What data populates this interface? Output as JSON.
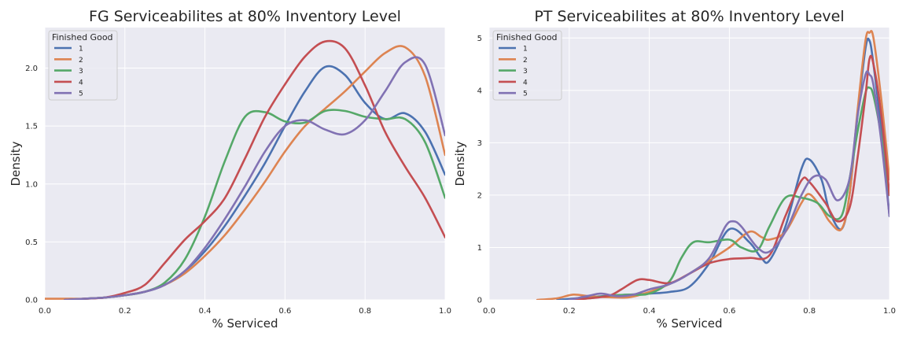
{
  "colors": {
    "background": "#eaeaf2",
    "grid": "#ffffff",
    "series": [
      "#4c72b0",
      "#dd8452",
      "#55a868",
      "#c44e52",
      "#8172b3"
    ]
  },
  "chart_data": [
    {
      "type": "line",
      "title": "FG Serviceabilites at 80% Inventory Level",
      "xlabel": "% Serviced",
      "ylabel": "Density",
      "xlim": [
        0,
        1
      ],
      "ylim": [
        0,
        2.35
      ],
      "xticks": [
        "0.0",
        "0.2",
        "0.4",
        "0.6",
        "0.8",
        "1.0"
      ],
      "yticks": [
        "0.0",
        "0.5",
        "1.0",
        "1.5",
        "2.0"
      ],
      "grid": true,
      "legend": {
        "title": "Finished Good",
        "position": "top-left"
      },
      "series": [
        {
          "name": "1",
          "x": [
            0.05,
            0.1,
            0.15,
            0.2,
            0.25,
            0.3,
            0.35,
            0.4,
            0.45,
            0.5,
            0.55,
            0.6,
            0.65,
            0.7,
            0.75,
            0.8,
            0.85,
            0.9,
            0.95,
            1.0
          ],
          "y": [
            0.0,
            0.01,
            0.02,
            0.04,
            0.07,
            0.13,
            0.25,
            0.42,
            0.64,
            0.9,
            1.18,
            1.5,
            1.8,
            2.01,
            1.94,
            1.7,
            1.56,
            1.61,
            1.45,
            1.08
          ]
        },
        {
          "name": "2",
          "x": [
            0.0,
            0.05,
            0.1,
            0.15,
            0.2,
            0.25,
            0.3,
            0.35,
            0.4,
            0.45,
            0.5,
            0.55,
            0.6,
            0.65,
            0.7,
            0.75,
            0.8,
            0.85,
            0.9,
            0.95,
            1.0
          ],
          "y": [
            0.01,
            0.01,
            0.01,
            0.02,
            0.04,
            0.07,
            0.13,
            0.23,
            0.38,
            0.56,
            0.78,
            1.02,
            1.28,
            1.5,
            1.65,
            1.8,
            1.97,
            2.13,
            2.18,
            1.93,
            1.25
          ]
        },
        {
          "name": "3",
          "x": [
            0.05,
            0.1,
            0.15,
            0.2,
            0.25,
            0.3,
            0.35,
            0.4,
            0.45,
            0.5,
            0.55,
            0.6,
            0.65,
            0.7,
            0.75,
            0.8,
            0.85,
            0.9,
            0.95,
            1.0
          ],
          "y": [
            0.0,
            0.01,
            0.02,
            0.04,
            0.07,
            0.15,
            0.35,
            0.72,
            1.2,
            1.58,
            1.62,
            1.54,
            1.53,
            1.63,
            1.63,
            1.58,
            1.56,
            1.56,
            1.36,
            0.88
          ]
        },
        {
          "name": "4",
          "x": [
            0.05,
            0.1,
            0.15,
            0.2,
            0.25,
            0.3,
            0.35,
            0.4,
            0.45,
            0.5,
            0.55,
            0.6,
            0.65,
            0.7,
            0.75,
            0.8,
            0.85,
            0.9,
            0.95,
            1.0
          ],
          "y": [
            0.0,
            0.01,
            0.02,
            0.06,
            0.13,
            0.32,
            0.52,
            0.68,
            0.88,
            1.22,
            1.58,
            1.86,
            2.1,
            2.23,
            2.17,
            1.85,
            1.45,
            1.15,
            0.88,
            0.54
          ]
        },
        {
          "name": "5",
          "x": [
            0.05,
            0.1,
            0.15,
            0.2,
            0.25,
            0.3,
            0.35,
            0.4,
            0.45,
            0.5,
            0.55,
            0.6,
            0.65,
            0.7,
            0.75,
            0.8,
            0.85,
            0.9,
            0.95,
            1.0
          ],
          "y": [
            0.0,
            0.01,
            0.02,
            0.04,
            0.07,
            0.13,
            0.25,
            0.45,
            0.7,
            0.98,
            1.28,
            1.5,
            1.55,
            1.47,
            1.43,
            1.55,
            1.8,
            2.05,
            2.03,
            1.42
          ]
        }
      ]
    },
    {
      "type": "line",
      "title": "PT Serviceabilites at 80% Inventory Level",
      "xlabel": "% Serviced",
      "ylabel": "Density",
      "xlim": [
        0,
        1
      ],
      "ylim": [
        0,
        5.2
      ],
      "xticks": [
        "0.0",
        "0.2",
        "0.4",
        "0.6",
        "0.8",
        "1.0"
      ],
      "yticks": [
        "0",
        "1",
        "2",
        "3",
        "4",
        "5"
      ],
      "grid": true,
      "legend": {
        "title": "Finished Good",
        "position": "top-left"
      },
      "series": [
        {
          "name": "1",
          "x": [
            0.17,
            0.25,
            0.3,
            0.35,
            0.4,
            0.45,
            0.5,
            0.55,
            0.6,
            0.65,
            0.68,
            0.7,
            0.74,
            0.78,
            0.8,
            0.83,
            0.85,
            0.88,
            0.9,
            0.92,
            0.94,
            0.95,
            0.96,
            0.98,
            1.0
          ],
          "y": [
            0.0,
            0.05,
            0.08,
            0.1,
            0.12,
            0.15,
            0.25,
            0.7,
            1.35,
            1.1,
            0.8,
            0.75,
            1.4,
            2.5,
            2.68,
            2.3,
            1.7,
            1.35,
            2.0,
            3.5,
            4.8,
            4.95,
            4.5,
            3.2,
            1.6
          ]
        },
        {
          "name": "2",
          "x": [
            0.12,
            0.17,
            0.21,
            0.25,
            0.3,
            0.35,
            0.4,
            0.45,
            0.5,
            0.55,
            0.6,
            0.65,
            0.68,
            0.7,
            0.74,
            0.78,
            0.8,
            0.83,
            0.85,
            0.88,
            0.9,
            0.92,
            0.94,
            0.95,
            0.96,
            0.98,
            1.0
          ],
          "y": [
            0.0,
            0.03,
            0.1,
            0.07,
            0.05,
            0.05,
            0.15,
            0.3,
            0.5,
            0.75,
            1.0,
            1.3,
            1.2,
            1.15,
            1.3,
            1.85,
            2.02,
            1.75,
            1.5,
            1.35,
            2.0,
            3.6,
            4.95,
            5.1,
            5.0,
            3.8,
            2.3
          ]
        },
        {
          "name": "3",
          "x": [
            0.2,
            0.25,
            0.3,
            0.35,
            0.4,
            0.45,
            0.48,
            0.51,
            0.55,
            0.6,
            0.63,
            0.67,
            0.7,
            0.74,
            0.78,
            0.82,
            0.85,
            0.88,
            0.9,
            0.92,
            0.94,
            0.95,
            0.96,
            0.98,
            1.0
          ],
          "y": [
            0.0,
            0.03,
            0.08,
            0.1,
            0.12,
            0.35,
            0.8,
            1.1,
            1.1,
            1.15,
            1.0,
            0.95,
            1.4,
            1.95,
            1.95,
            1.85,
            1.6,
            1.6,
            2.3,
            3.2,
            3.95,
            4.05,
            3.9,
            3.1,
            2.0
          ]
        },
        {
          "name": "4",
          "x": [
            0.2,
            0.25,
            0.3,
            0.33,
            0.37,
            0.4,
            0.45,
            0.5,
            0.55,
            0.6,
            0.65,
            0.7,
            0.74,
            0.78,
            0.8,
            0.84,
            0.87,
            0.9,
            0.92,
            0.94,
            0.95,
            0.96,
            0.98,
            1.0
          ],
          "y": [
            0.0,
            0.03,
            0.08,
            0.2,
            0.38,
            0.38,
            0.32,
            0.5,
            0.7,
            0.78,
            0.8,
            0.85,
            1.6,
            2.28,
            2.25,
            1.85,
            1.5,
            1.75,
            2.7,
            3.9,
            4.6,
            4.5,
            3.5,
            2.0
          ]
        },
        {
          "name": "5",
          "x": [
            0.2,
            0.25,
            0.28,
            0.32,
            0.36,
            0.4,
            0.45,
            0.5,
            0.55,
            0.59,
            0.61,
            0.63,
            0.67,
            0.7,
            0.74,
            0.78,
            0.81,
            0.84,
            0.87,
            0.9,
            0.92,
            0.94,
            0.95,
            0.96,
            0.98,
            1.0
          ],
          "y": [
            0.0,
            0.08,
            0.12,
            0.07,
            0.1,
            0.2,
            0.3,
            0.5,
            0.8,
            1.4,
            1.5,
            1.4,
            1.0,
            0.92,
            1.3,
            2.0,
            2.35,
            2.3,
            1.9,
            2.3,
            3.5,
            4.3,
            4.3,
            4.1,
            3.0,
            1.6
          ]
        }
      ]
    }
  ]
}
